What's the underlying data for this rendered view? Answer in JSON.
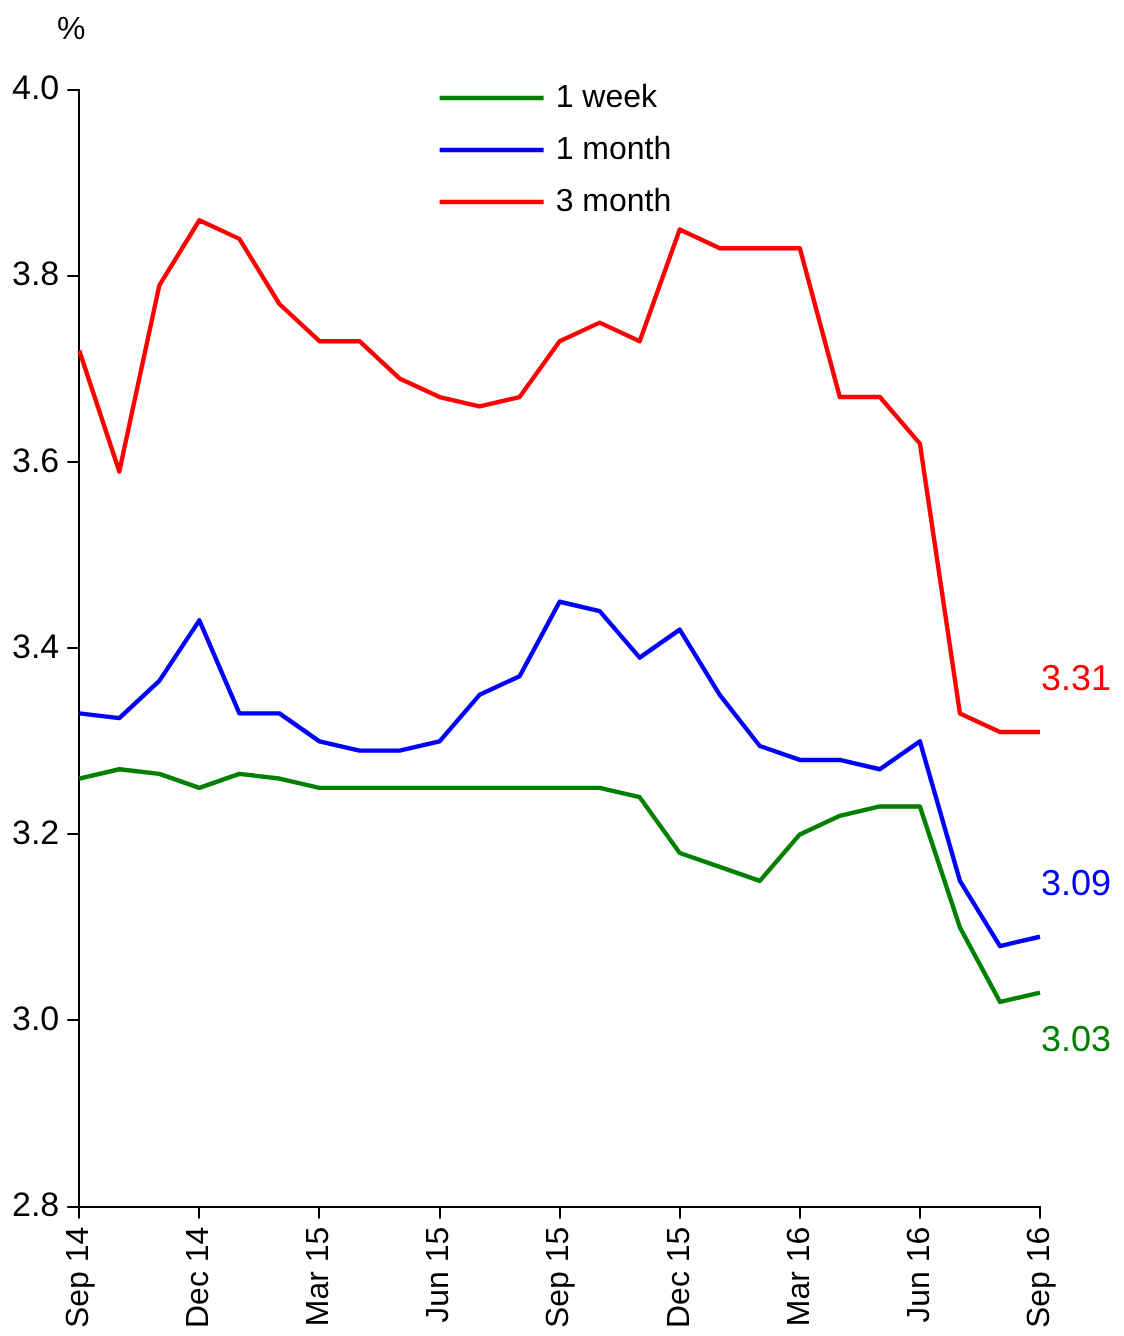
{
  "chart_data": {
    "type": "line",
    "ylabel": "%",
    "categories": [
      "Sep 14",
      null,
      null,
      "Dec 14",
      null,
      null,
      "Mar 15",
      null,
      null,
      "Jun 15",
      null,
      null,
      "Sep 15",
      null,
      null,
      "Dec 15",
      null,
      null,
      "Mar 16",
      null,
      null,
      "Jun 16",
      null,
      null,
      "Sep 16"
    ],
    "series": [
      {
        "name": "1 week",
        "color": "#008000",
        "values": [
          3.26,
          3.27,
          3.265,
          3.25,
          3.265,
          3.26,
          3.25,
          3.25,
          3.25,
          3.25,
          3.25,
          3.25,
          3.25,
          3.25,
          3.24,
          3.18,
          3.165,
          3.15,
          3.2,
          3.22,
          3.23,
          3.23,
          3.1,
          3.02,
          3.03
        ]
      },
      {
        "name": "1 month",
        "color": "#0000ff",
        "values": [
          3.33,
          3.325,
          3.365,
          3.43,
          3.33,
          3.33,
          3.3,
          3.29,
          3.29,
          3.3,
          3.35,
          3.37,
          3.45,
          3.44,
          3.39,
          3.42,
          3.35,
          3.295,
          3.28,
          3.28,
          3.27,
          3.3,
          3.15,
          3.08,
          3.09
        ]
      },
      {
        "name": "3 month",
        "color": "#ff0000",
        "values": [
          3.72,
          3.59,
          3.79,
          3.86,
          3.84,
          3.77,
          3.73,
          3.73,
          3.69,
          3.67,
          3.66,
          3.67,
          3.73,
          3.75,
          3.73,
          3.85,
          3.83,
          3.83,
          3.83,
          3.67,
          3.67,
          3.62,
          3.33,
          3.31,
          3.31
        ]
      }
    ],
    "ylim": [
      2.8,
      4.0
    ],
    "yticks": [
      2.8,
      {
        "value": 3,
        "label": "3.0"
      },
      3.2,
      3.4,
      3.6,
      3.8,
      {
        "value": 4,
        "label": "4.0"
      }
    ],
    "grid": false,
    "legend": "top",
    "marker": "none",
    "line_style": "solid",
    "annotations": [
      {
        "text": "3.31",
        "x": "Sep 16",
        "y": 3.31
      },
      {
        "text": "3.09",
        "x": "Sep 16",
        "y": 3.09
      },
      {
        "text": "3.03",
        "x": "Sep 16",
        "y": 3.03
      }
    ]
  }
}
